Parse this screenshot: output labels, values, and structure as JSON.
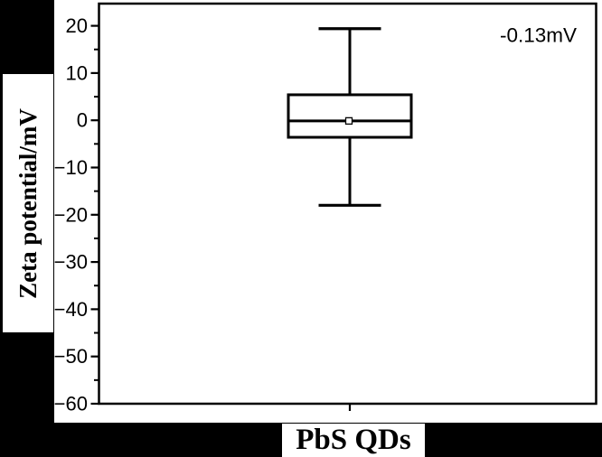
{
  "figure": {
    "background_color": "#ffffff",
    "band_color": "#000000",
    "axis_color": "#000000",
    "box_color": "#000000"
  },
  "chart_data": {
    "type": "box",
    "title": "",
    "xlabel": "PbS QDs",
    "ylabel": "Zeta potential/mV",
    "categories": [
      "PbS QDs"
    ],
    "series": [
      {
        "name": "PbS QDs",
        "whisker_low": -18,
        "q1": -3.6,
        "median": -0.13,
        "q3": 5.4,
        "whisker_high": 19.4,
        "mean": -0.13
      }
    ],
    "ylim": [
      -60,
      24.7
    ],
    "yticks": [
      {
        "value": 20,
        "label": "20"
      },
      {
        "value": 10,
        "label": "10"
      },
      {
        "value": 0,
        "label": "0"
      },
      {
        "value": -10,
        "label": "−10"
      },
      {
        "value": -20,
        "label": "−20"
      },
      {
        "value": -30,
        "label": "−30"
      },
      {
        "value": -40,
        "label": "−40"
      },
      {
        "value": -50,
        "label": "−50"
      },
      {
        "value": -60,
        "label": "−60"
      }
    ],
    "yticks_minor": [
      15,
      5,
      -5,
      -15,
      -25,
      -35,
      -45,
      -55
    ],
    "grid": false,
    "legend": false,
    "annotations": [
      {
        "text": "-0.13mV",
        "position": "top-right"
      }
    ]
  }
}
